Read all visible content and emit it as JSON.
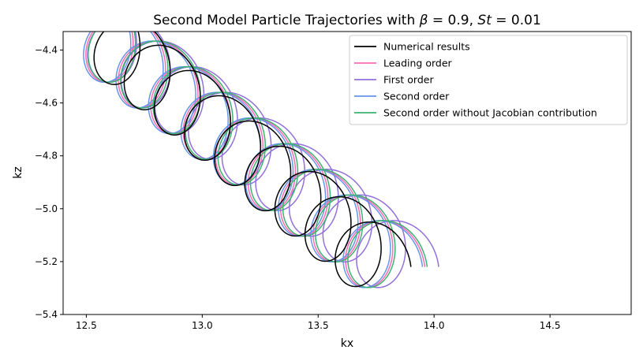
{
  "chart_data": {
    "type": "line",
    "title": "Second Model Particle Trajectories with β = 0.9, St = 0.01",
    "xlabel": "kx",
    "ylabel": "kz",
    "xlim": [
      12.4,
      14.85
    ],
    "ylim": [
      -5.4,
      -4.33
    ],
    "xticks": [
      12.5,
      13.0,
      13.5,
      14.0,
      14.5
    ],
    "xtick_labels": [
      "12.5",
      "13.0",
      "13.5",
      "14.0",
      "14.5"
    ],
    "yticks": [
      -4.4,
      -4.6,
      -4.8,
      -5.0,
      -5.2,
      -5.4
    ],
    "ytick_labels": [
      "−4.4",
      "−4.6",
      "−4.8",
      "−5.0",
      "−5.2",
      "−5.4"
    ],
    "grid": false,
    "legend_position": "top-right",
    "series": [
      {
        "name": "Numerical results",
        "color": "#000000",
        "end": [
          13.9,
          -5.22
        ],
        "drift_x": 0.13,
        "drift_z": 0.0955,
        "radius_x": 0.13,
        "radius_z": 0.29
      },
      {
        "name": "Leading order",
        "color": "#ff69b4",
        "end": [
          13.96,
          -5.22
        ],
        "drift_x": 0.14,
        "drift_z": 0.097,
        "radius_x": 0.135,
        "radius_z": 0.3
      },
      {
        "name": "First order",
        "color": "#9370db",
        "end": [
          14.02,
          -5.22
        ],
        "drift_x": 0.145,
        "drift_z": 0.097,
        "radius_x": 0.14,
        "radius_z": 0.3
      },
      {
        "name": "Second order",
        "color": "#6495ed",
        "end": [
          13.95,
          -5.22
        ],
        "drift_x": 0.14,
        "drift_z": 0.097,
        "radius_x": 0.135,
        "radius_z": 0.3
      },
      {
        "name": "Second order without Jacobian contribution",
        "color": "#3cb371",
        "end": [
          13.97,
          -5.22
        ],
        "drift_x": 0.14,
        "drift_z": 0.097,
        "radius_x": 0.135,
        "radius_z": 0.3
      }
    ]
  }
}
